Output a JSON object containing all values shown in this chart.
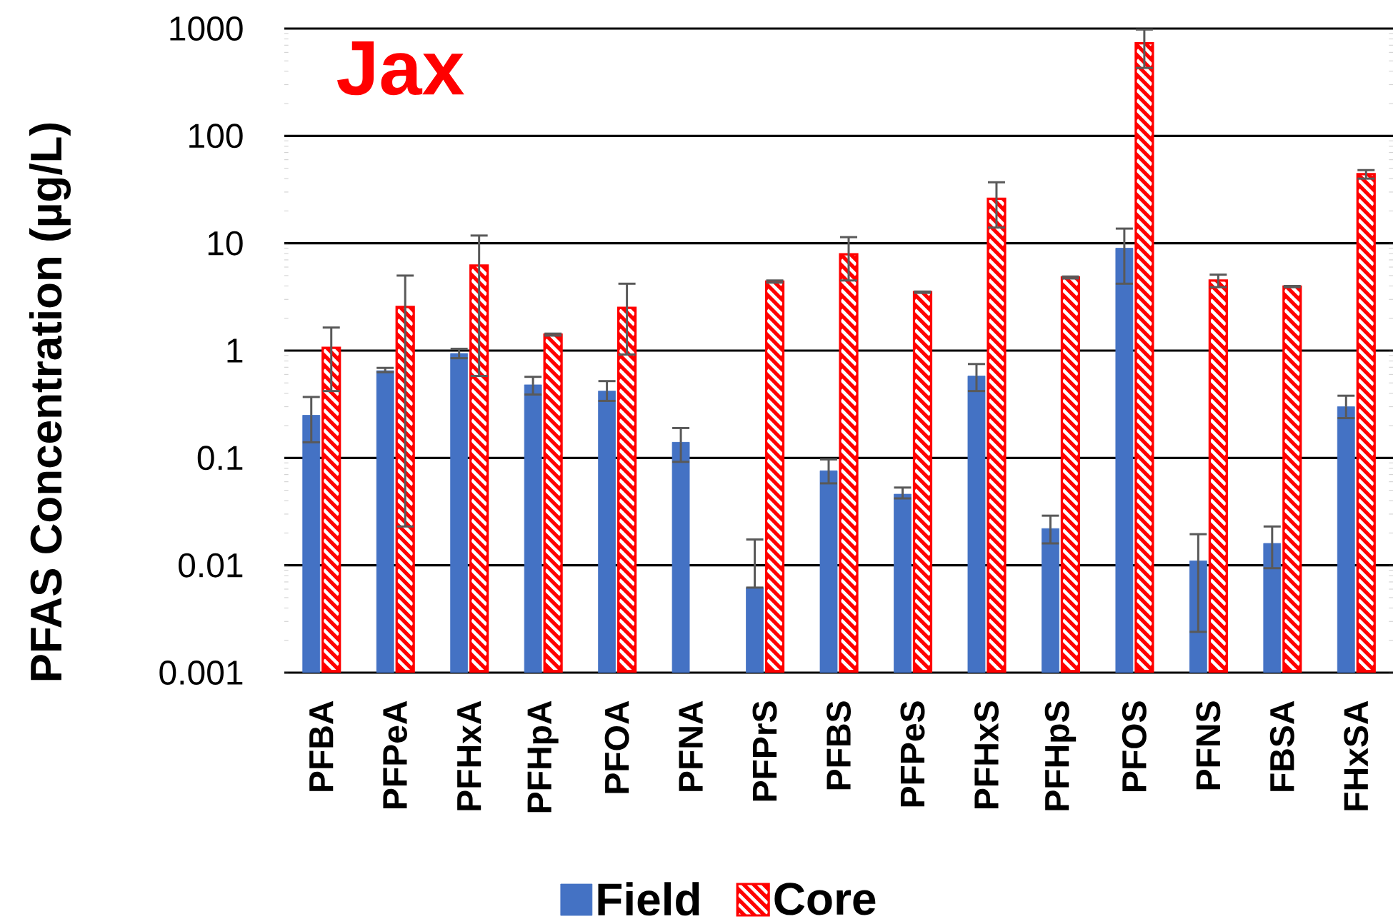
{
  "chart_data": {
    "type": "bar",
    "title": "Jax",
    "ylabel": "PFAS Concentration (µg/L)",
    "categories": [
      "PFBA",
      "PFPeA",
      "PFHxA",
      "PFHpA",
      "PFOA",
      "PFNA",
      "PFPrS",
      "PFBS",
      "PFPeS",
      "PFHxS",
      "PFHpS",
      "PFOS",
      "PFNS",
      "FBSA",
      "FHxSA"
    ],
    "series": [
      {
        "name": "Field",
        "color": "#4472c4",
        "values": [
          0.25,
          0.65,
          0.94,
          0.48,
          0.42,
          0.14,
          0.0062,
          0.076,
          0.046,
          0.58,
          0.022,
          9,
          0.011,
          0.016,
          0.3
        ],
        "errors": [
          [
            0.14,
            0.37
          ],
          [
            0.63,
            0.69
          ],
          [
            0.85,
            1.04
          ],
          [
            0.39,
            0.57
          ],
          [
            0.34,
            0.52
          ],
          [
            0.092,
            0.19
          ],
          [
            0.0062,
            0.0174
          ],
          [
            0.058,
            0.097
          ],
          [
            0.042,
            0.053
          ],
          [
            0.42,
            0.75
          ],
          [
            0.016,
            0.029
          ],
          [
            4.2,
            13.7
          ],
          [
            0.0024,
            0.0195
          ],
          [
            0.0094,
            0.023
          ],
          [
            0.235,
            0.38
          ]
        ]
      },
      {
        "name": "Core",
        "color": "#ff0000",
        "values": [
          1.06,
          2.55,
          6.2,
          1.41,
          2.5,
          null,
          4.4,
          7.9,
          3.5,
          26,
          4.8,
          730,
          4.5,
          3.95,
          44
        ],
        "errors": [
          [
            0.42,
            1.64
          ],
          [
            0.023,
            5.0
          ],
          [
            0.58,
            11.8
          ],
          [
            1.38,
            1.44
          ],
          [
            0.92,
            4.2
          ],
          null,
          [
            4.3,
            4.5
          ],
          [
            4.5,
            11.4
          ],
          [
            3.45,
            3.55
          ],
          [
            14,
            37
          ],
          [
            4.7,
            4.9
          ],
          [
            430,
            980
          ],
          [
            3.9,
            5.1
          ],
          [
            3.9,
            4.0
          ],
          [
            40,
            48
          ]
        ]
      }
    ],
    "log": true,
    "ylim": [
      0.001,
      1000
    ],
    "yticks": [
      0.001,
      0.01,
      0.1,
      1,
      10,
      100,
      1000
    ],
    "grid": "y",
    "legend": "bottom"
  }
}
